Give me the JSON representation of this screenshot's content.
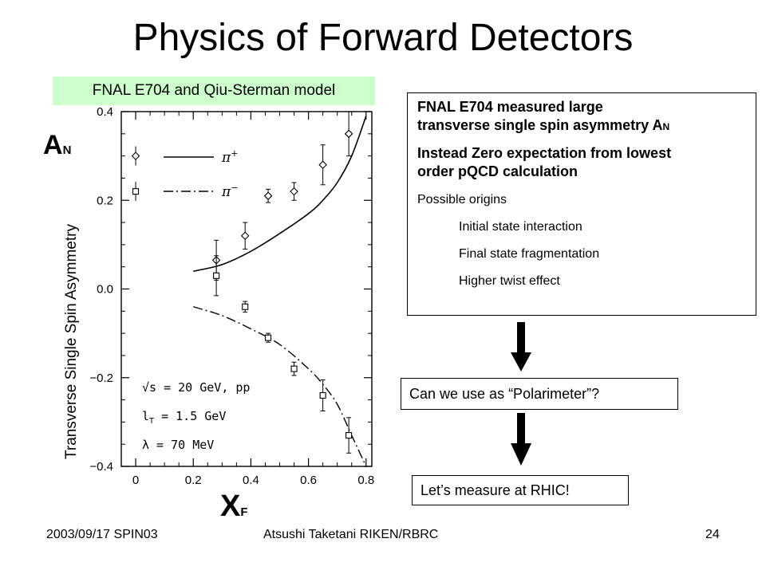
{
  "slide": {
    "title": "Physics of Forward Detectors",
    "subtitle_label": "FNAL E704 and Qiu-Sterman model",
    "info_box": {
      "line1": "FNAL E704 measured large",
      "line2": "transverse single spin asymmetry A",
      "line2_sub": "N",
      "line3": "Instead Zero expectation from lowest",
      "line4": "order pQCD calculation",
      "origins_heading": "Possible origins",
      "origins": [
        "Initial state interaction",
        "Final state fragmentation",
        "Higher twist effect"
      ]
    },
    "question_box": "Can we use as “Polarimeter”?",
    "action_box": "Let’s measure at RHIC!",
    "footer": {
      "left": "2003/09/17 SPIN03",
      "center": "Atsushi Taketani RIKEN/RBRC",
      "page": "24"
    },
    "colors": {
      "label_bg": "#ccffcc",
      "arrow": "#000000"
    }
  },
  "chart_data": {
    "type": "scatter",
    "ylabel": "Transverse Single Spin Asymmetry",
    "ylabel_symbol": "A",
    "ylabel_symbol_sub": "N",
    "xlabel": "X",
    "xlabel_sub": "F",
    "xlim": [
      -0.05,
      0.82
    ],
    "ylim": [
      -0.4,
      0.4
    ],
    "x_ticks": [
      "0",
      "0.2",
      "0.4",
      "0.6",
      "0.8"
    ],
    "x_tick_values": [
      0,
      0.2,
      0.4,
      0.6,
      0.8
    ],
    "y_ticks": [
      "0.4",
      "0.2",
      "0.0",
      "−0.2",
      "−0.4"
    ],
    "y_tick_values": [
      0.4,
      0.2,
      0.0,
      -0.2,
      -0.4
    ],
    "annotations": [
      "√s = 20 GeV, pp",
      "l_T = 1.5 GeV",
      "λ = 70 MeV"
    ],
    "annot_line1": "√s = 20 GeV, pp",
    "annot_line2_main": "l",
    "annot_line2_sub": "T",
    "annot_line2_rest": " = 1.5 GeV",
    "annot_line3": "λ = 70 MeV",
    "legend": [
      {
        "name": "π⁺",
        "marker": "diamond",
        "line": "solid"
      },
      {
        "name": "π⁻",
        "marker": "square",
        "line": "dash-dot"
      }
    ],
    "legend_plus_main": "π",
    "legend_plus_sup": "+",
    "legend_minus_main": "π",
    "legend_minus_sup": "−",
    "series": [
      {
        "name": "π⁺",
        "marker": "diamond",
        "points": [
          {
            "x": 0.28,
            "y": 0.065,
            "err": 0.045
          },
          {
            "x": 0.38,
            "y": 0.12,
            "err": 0.03
          },
          {
            "x": 0.46,
            "y": 0.21,
            "err": 0.015
          },
          {
            "x": 0.55,
            "y": 0.22,
            "err": 0.02
          },
          {
            "x": 0.65,
            "y": 0.28,
            "err": 0.045
          },
          {
            "x": 0.74,
            "y": 0.35,
            "err": 0.05
          }
        ]
      },
      {
        "name": "π⁻",
        "marker": "square",
        "points": [
          {
            "x": 0.28,
            "y": 0.03,
            "err": 0.045
          },
          {
            "x": 0.38,
            "y": -0.04,
            "err": 0.012
          },
          {
            "x": 0.46,
            "y": -0.11,
            "err": 0.01
          },
          {
            "x": 0.55,
            "y": -0.18,
            "err": 0.015
          },
          {
            "x": 0.65,
            "y": -0.24,
            "err": 0.035
          },
          {
            "x": 0.74,
            "y": -0.33,
            "err": 0.04
          }
        ]
      }
    ],
    "curves": [
      {
        "name": "π⁺ model",
        "style": "solid",
        "x": [
          0.2,
          0.3,
          0.4,
          0.5,
          0.6,
          0.65,
          0.7,
          0.75,
          0.8
        ],
        "y": [
          0.04,
          0.055,
          0.085,
          0.125,
          0.17,
          0.2,
          0.24,
          0.3,
          0.39
        ]
      },
      {
        "name": "π⁻ model",
        "style": "dash-dot",
        "x": [
          0.2,
          0.3,
          0.4,
          0.5,
          0.6,
          0.65,
          0.7,
          0.75,
          0.8
        ],
        "y": [
          -0.04,
          -0.06,
          -0.09,
          -0.125,
          -0.18,
          -0.215,
          -0.26,
          -0.33,
          -0.4
        ]
      }
    ]
  }
}
